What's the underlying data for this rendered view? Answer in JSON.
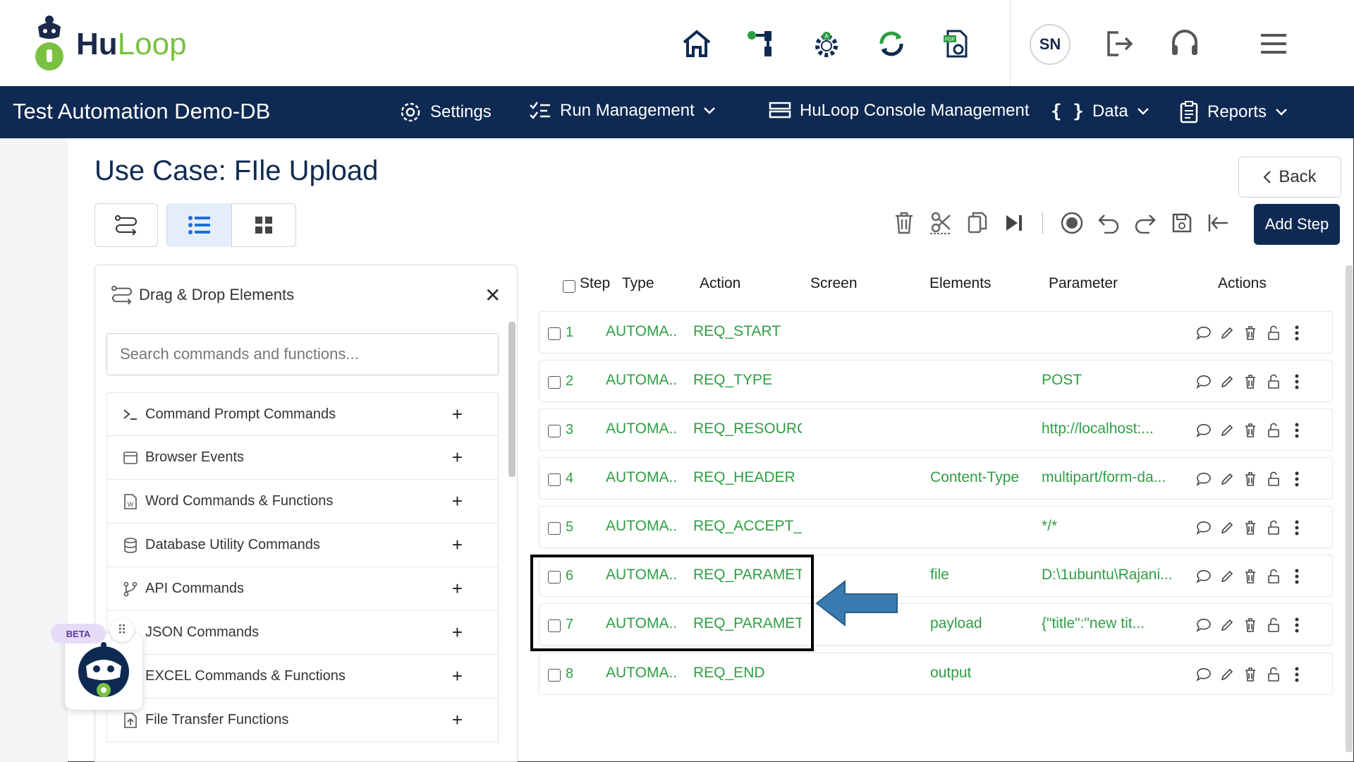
{
  "brand": {
    "name_part1": "Hu",
    "name_part2": "Loop"
  },
  "header_icons": [
    "home-icon",
    "workflow-icon",
    "automation-gear-icon",
    "sync-icon",
    "pdf-settings-icon"
  ],
  "user": {
    "initials": "SN"
  },
  "navbar": {
    "project_title": "Test Automation Demo-DB",
    "settings": "Settings",
    "run_management": "Run Management",
    "console_management": "HuLoop Console Management",
    "data": "Data",
    "reports": "Reports"
  },
  "page": {
    "title": "Use Case: FIle Upload",
    "back_label": "Back",
    "add_step_label": "Add Step"
  },
  "panel": {
    "title": "Drag & Drop Elements",
    "search_placeholder": "Search commands and functions...",
    "items": [
      {
        "label": "Command Prompt Commands",
        "icon": "terminal-icon"
      },
      {
        "label": "Browser Events",
        "icon": "browser-icon"
      },
      {
        "label": "Word Commands & Functions",
        "icon": "word-doc-icon"
      },
      {
        "label": "Database Utility Commands",
        "icon": "database-icon"
      },
      {
        "label": "API Commands",
        "icon": "api-branch-icon"
      },
      {
        "label": "JSON Commands",
        "icon": "json-icon"
      },
      {
        "label": "EXCEL Commands & Functions",
        "icon": "excel-icon"
      },
      {
        "label": "File Transfer Functions",
        "icon": "file-upload-icon"
      }
    ]
  },
  "beta_label": "BETA",
  "table": {
    "headers": {
      "step": "Step",
      "type": "Type",
      "action": "Action",
      "screen": "Screen",
      "elements": "Elements",
      "parameter": "Parameter",
      "actions": "Actions"
    },
    "rows": [
      {
        "num": "1",
        "type": "AUTOMA...",
        "action": "REQ_START",
        "screen": "",
        "elements": "",
        "parameter": ""
      },
      {
        "num": "2",
        "type": "AUTOMA...",
        "action": "REQ_TYPE",
        "screen": "",
        "elements": "",
        "parameter": "POST"
      },
      {
        "num": "3",
        "type": "AUTOMA...",
        "action": "REQ_RESOURCE",
        "screen": "",
        "elements": "",
        "parameter": "http://localhost:..."
      },
      {
        "num": "4",
        "type": "AUTOMA...",
        "action": "REQ_HEADER",
        "screen": "",
        "elements": "Content-Type",
        "parameter": "multipart/form-da..."
      },
      {
        "num": "5",
        "type": "AUTOMA...",
        "action": "REQ_ACCEPT_",
        "screen": "",
        "elements": "",
        "parameter": "*/*"
      },
      {
        "num": "6",
        "type": "AUTOMA...",
        "action": "REQ_PARAMETER",
        "screen": "",
        "elements": "file",
        "parameter": "D:\\1ubuntu\\Rajani..."
      },
      {
        "num": "7",
        "type": "AUTOMA...",
        "action": "REQ_PARAMETER",
        "screen": "",
        "elements": "payload",
        "parameter": "{\"title\":\"new tit..."
      },
      {
        "num": "8",
        "type": "AUTOMA...",
        "action": "REQ_END",
        "screen": "",
        "elements": "output",
        "parameter": ""
      }
    ]
  },
  "colors": {
    "navy": "#0e2a52",
    "green": "#2f9e44",
    "arrow": "#3a7bb0",
    "brand_green": "#7ac143"
  }
}
